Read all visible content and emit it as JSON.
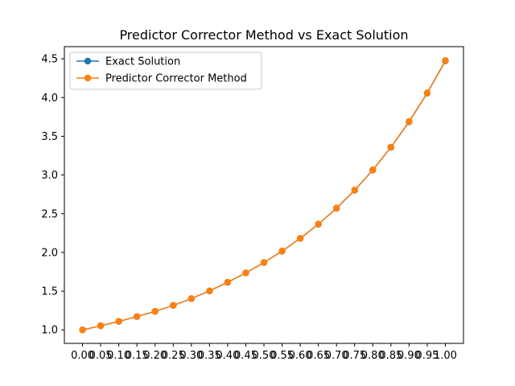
{
  "chart_data": {
    "type": "line",
    "title": "Predictor Corrector Method vs Exact Solution",
    "xlabel": "",
    "ylabel": "",
    "x": [
      0.0,
      0.05,
      0.1,
      0.15,
      0.2,
      0.25,
      0.3,
      0.35,
      0.4,
      0.45,
      0.5,
      0.55,
      0.6,
      0.65,
      0.7,
      0.75,
      0.8,
      0.85,
      0.9,
      0.95,
      1.0
    ],
    "xtick_labels": [
      "0.00",
      "0.05",
      "0.10",
      "0.15",
      "0.20",
      "0.25",
      "0.30",
      "0.35",
      "0.40",
      "0.45",
      "0.50",
      "0.55",
      "0.60",
      "0.65",
      "0.70",
      "0.75",
      "0.80",
      "0.85",
      "0.90",
      "0.95",
      "1.00"
    ],
    "yticks": [
      1.0,
      1.5,
      2.0,
      2.5,
      3.0,
      3.5,
      4.0,
      4.5
    ],
    "ytick_labels": [
      "1.0",
      "1.5",
      "2.0",
      "2.5",
      "3.0",
      "3.5",
      "4.0",
      "4.5"
    ],
    "xlim": [
      -0.05,
      1.05
    ],
    "ylim": [
      0.826,
      4.657
    ],
    "grid": false,
    "legend_position": "upper-left",
    "series": [
      {
        "name": "Exact Solution",
        "color": "#1f77b4",
        "marker": "circle",
        "values": [
          1.0,
          1.053,
          1.11,
          1.172,
          1.239,
          1.316,
          1.403,
          1.503,
          1.614,
          1.735,
          1.869,
          2.016,
          2.18,
          2.364,
          2.57,
          2.802,
          3.063,
          3.357,
          3.686,
          4.056,
          4.473
        ]
      },
      {
        "name": "Predictor Corrector Method",
        "color": "#ff7f0e",
        "marker": "circle",
        "values": [
          1.0,
          1.053,
          1.11,
          1.172,
          1.24,
          1.317,
          1.404,
          1.504,
          1.615,
          1.736,
          1.87,
          2.018,
          2.182,
          2.366,
          2.573,
          2.805,
          3.066,
          3.36,
          3.69,
          4.06,
          4.478
        ]
      }
    ]
  }
}
